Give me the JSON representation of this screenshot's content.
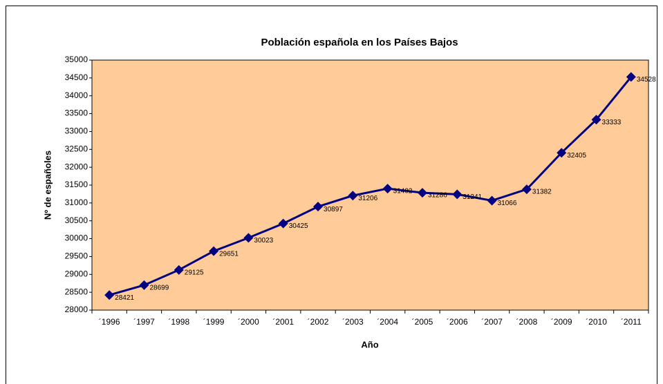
{
  "chart_data": {
    "type": "line",
    "title": "Población española en los Países Bajos",
    "x_label": "Año",
    "y_label": "Nº de españoles",
    "categories": [
      "´1996",
      "´1997",
      "´1998",
      "´1999",
      "´2000",
      "´2001",
      "´2002",
      "´2003",
      "´2004",
      "´2005",
      "´2006",
      "´2007",
      "´2008",
      "´2009",
      "´2010",
      "´2011"
    ],
    "series": [
      {
        "name": "Nº de españoles",
        "color": "#000080",
        "values": [
          28421,
          28699,
          29125,
          29651,
          30023,
          30425,
          30897,
          31206,
          31402,
          31286,
          31241,
          31066,
          31382,
          32405,
          33333,
          34528
        ]
      }
    ],
    "ylim": [
      28000,
      35000
    ],
    "yticks": [
      28000,
      28500,
      29000,
      29500,
      30000,
      30500,
      31000,
      31500,
      32000,
      32500,
      33000,
      33500,
      34000,
      34500,
      35000
    ],
    "plot_background": "#ffcc99"
  }
}
